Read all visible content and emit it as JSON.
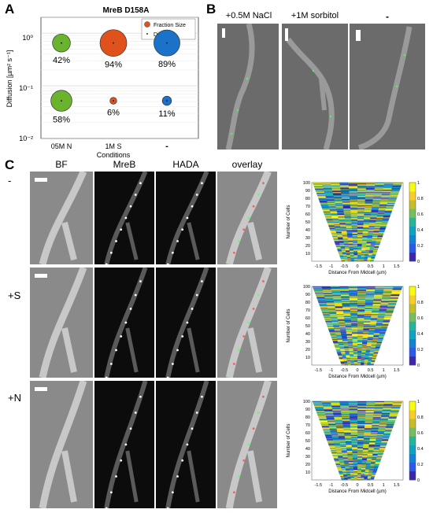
{
  "panel_letters": {
    "a": "A",
    "b": "B",
    "c": "C"
  },
  "chart_data": {
    "type": "scatter",
    "title": "MreB D158A",
    "xlabel": "Conditions",
    "ylabel": "Diffusion [µm² s⁻¹]",
    "yscale": "log",
    "ylim": [
      0.01,
      2
    ],
    "y_ticks": [
      "10⁻²",
      "10⁻¹",
      "10⁰"
    ],
    "categories": [
      "05M N",
      "1M S",
      "-"
    ],
    "legend": {
      "position": "top-right",
      "entries": [
        "Fraction Size",
        "Diffusion"
      ]
    },
    "grid": true,
    "series": [
      {
        "row": "upper",
        "diffusion": [
          0.65,
          0.65,
          0.65
        ],
        "fraction_percent": [
          42,
          94,
          89
        ],
        "labels": [
          "42%",
          "94%",
          "89%"
        ],
        "colors": [
          "#6ab42d",
          "#e0521c",
          "#1a73c8"
        ]
      },
      {
        "row": "lower",
        "diffusion": [
          0.052,
          0.052,
          0.052
        ],
        "fraction_percent": [
          58,
          6,
          11
        ],
        "labels": [
          "58%",
          "6%",
          "11%"
        ],
        "colors": [
          "#6ab42d",
          "#e0521c",
          "#1a73c8"
        ]
      }
    ]
  },
  "panel_b": {
    "titles": [
      "+0.5M NaCl",
      "+1M sorbitol",
      "-"
    ]
  },
  "panel_c": {
    "column_headers": [
      "BF",
      "MreB",
      "HADA",
      "overlay"
    ],
    "row_labels": [
      "-",
      "+S",
      "+N"
    ],
    "heatmaps": {
      "type": "heatmap",
      "ylabel": "Number of Cells",
      "xlabel": "Distance From Midcell (µm)",
      "x_ticks": [
        "-1.5",
        "-1",
        "-0.5",
        "0",
        "0.5",
        "1",
        "1.5"
      ],
      "y_ticks": [
        "10",
        "20",
        "30",
        "40",
        "50",
        "60",
        "70",
        "80",
        "90",
        "100"
      ],
      "colorbar_ticks": [
        "0",
        "0.2",
        "0.4",
        "0.6",
        "0.8",
        "1"
      ]
    }
  }
}
